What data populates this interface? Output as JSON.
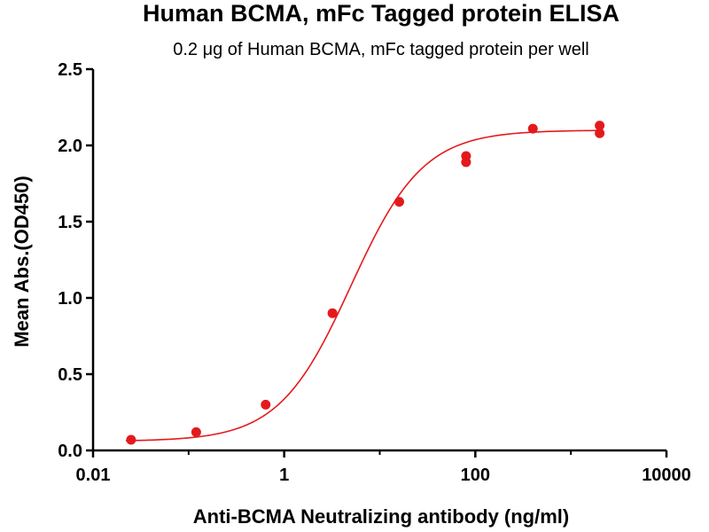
{
  "chart_data": {
    "type": "scatter",
    "title": "Human BCMA, mFc Tagged protein ELISA",
    "subtitle": "0.2 μg of Human BCMA, mFc tagged protein per well",
    "xlabel": "Anti-BCMA Neutralizing antibody (ng/ml)",
    "ylabel": "Mean Abs.(OD450)",
    "x_scale": "log",
    "xlim": [
      0.01,
      10000
    ],
    "ylim": [
      0,
      2.5
    ],
    "x_ticks": [
      0.01,
      1,
      100,
      10000
    ],
    "x_tick_labels": [
      "0.01",
      "1",
      "100",
      "10000"
    ],
    "y_ticks": [
      0.0,
      0.5,
      1.0,
      1.5,
      2.0,
      2.5
    ],
    "y_tick_labels": [
      "0.0",
      "0.5",
      "1.0",
      "1.5",
      "2.0",
      "2.5"
    ],
    "grid": false,
    "color": "#e31a1c",
    "points": [
      {
        "x": 0.025,
        "y": 0.07
      },
      {
        "x": 0.12,
        "y": 0.12
      },
      {
        "x": 0.64,
        "y": 0.3
      },
      {
        "x": 3.2,
        "y": 0.9
      },
      {
        "x": 16,
        "y": 1.63
      },
      {
        "x": 80,
        "y": 1.89
      },
      {
        "x": 80,
        "y": 1.93
      },
      {
        "x": 400,
        "y": 2.11
      },
      {
        "x": 2000,
        "y": 2.08
      },
      {
        "x": 2000,
        "y": 2.13
      }
    ],
    "fit": {
      "model": "four-parameter logistic",
      "bottom": 0.06,
      "top": 2.1,
      "ec50": 5.0,
      "hill": 1.15
    }
  }
}
